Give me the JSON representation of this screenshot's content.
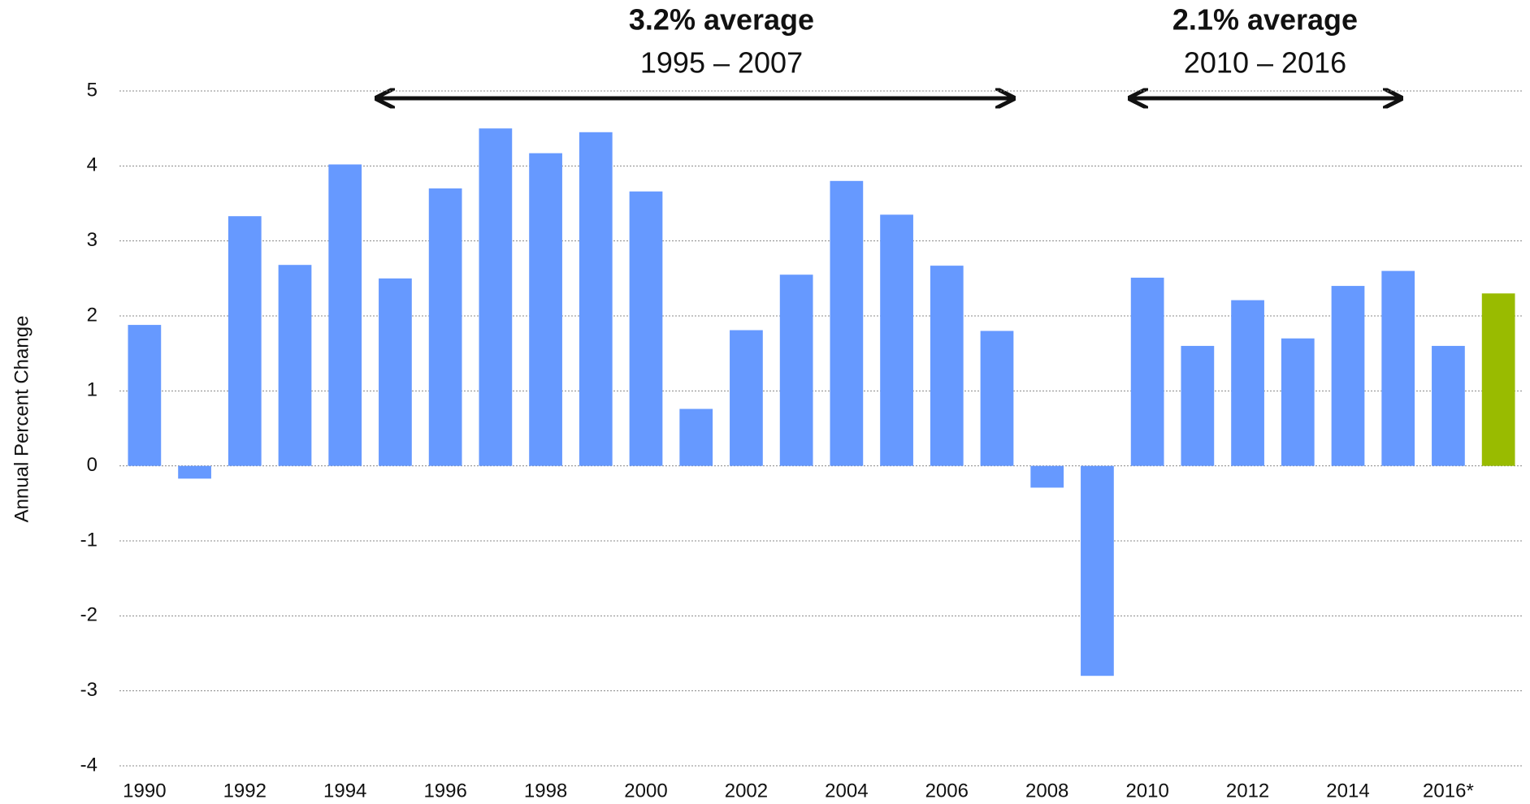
{
  "chart_data": {
    "type": "bar",
    "y_label": "Annual Percent Change",
    "categories": [
      "1990",
      null,
      "1992",
      null,
      "1994",
      null,
      "1996",
      null,
      "1998",
      null,
      "2000",
      null,
      "2002",
      null,
      "2004",
      null,
      "2006",
      null,
      "2008",
      null,
      "2010",
      null,
      "2012",
      null,
      "2014",
      null,
      "2016*",
      null
    ],
    "values": [
      1.88,
      -0.17,
      3.33,
      2.68,
      4.02,
      2.5,
      3.7,
      4.5,
      4.17,
      4.45,
      3.66,
      0.76,
      1.81,
      2.55,
      3.8,
      3.35,
      2.67,
      1.8,
      -0.29,
      -2.8,
      2.51,
      1.6,
      2.21,
      1.7,
      2.4,
      2.6,
      1.6,
      2.3
    ],
    "colors": [
      "#6699ff",
      "#6699ff",
      "#6699ff",
      "#6699ff",
      "#6699ff",
      "#6699ff",
      "#6699ff",
      "#6699ff",
      "#6699ff",
      "#6699ff",
      "#6699ff",
      "#6699ff",
      "#6699ff",
      "#6699ff",
      "#6699ff",
      "#6699ff",
      "#6699ff",
      "#6699ff",
      "#6699ff",
      "#6699ff",
      "#6699ff",
      "#6699ff",
      "#6699ff",
      "#6699ff",
      "#6699ff",
      "#6699ff",
      "#6699ff",
      "#99bb00"
    ],
    "ylim": [
      -4,
      5
    ],
    "yticks": [
      -4,
      -3,
      -2,
      -1,
      0,
      1,
      2,
      3,
      4,
      5
    ],
    "grid": true,
    "annotations": [
      {
        "title": "3.2% average",
        "subtitle": "1995 – 2007"
      },
      {
        "title": "2.1% average",
        "subtitle": "2010 – 2016"
      }
    ]
  }
}
